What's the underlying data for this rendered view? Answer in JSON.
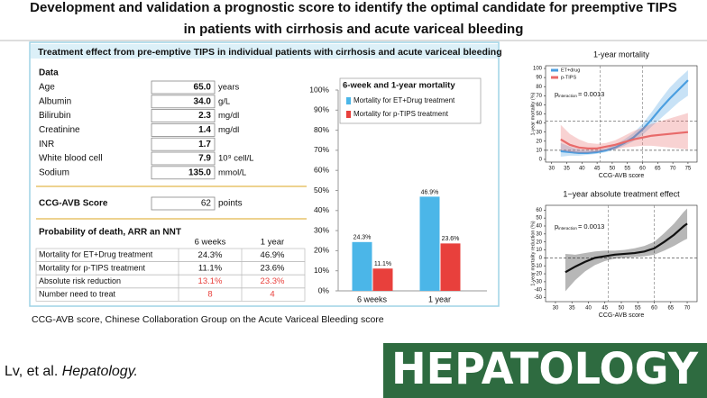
{
  "title": [
    "Development and validation a prognostic score to identify the optimal candidate for preemptive TIPS",
    "in patients with cirrhosis and acute variceal bleeding"
  ],
  "panel": {
    "header": "Treatment effect from pre-emptive TIPS in individual patients with  cirrhosis and acute variceal bleeding",
    "data_heading": "Data",
    "rows": [
      {
        "label": "Age",
        "value": "65.0",
        "unit": "years"
      },
      {
        "label": "Albumin",
        "value": "34.0",
        "unit": "g/L"
      },
      {
        "label": "Bilirubin",
        "value": "2.3",
        "unit": "mg/dl"
      },
      {
        "label": "Creatinine",
        "value": "1.4",
        "unit": "mg/dl"
      },
      {
        "label": "INR",
        "value": "1.7"
      },
      {
        "label": "White blood cell",
        "value": "7.9",
        "unit": "10⁹ cell/L"
      },
      {
        "label": "Sodium",
        "value": "135.0",
        "unit": "mmol/L"
      }
    ],
    "score": {
      "label": "CCG-AVB Score",
      "value": "62",
      "unit": "points"
    },
    "prob_heading": "Probability of death, ARR an NNT",
    "columns": [
      "6 weeks",
      "1 year"
    ],
    "table": [
      {
        "label": "Mortality for ET+Drug treatment",
        "cells": [
          "24.3%",
          "46.9%"
        ]
      },
      {
        "label": "Mortality for p-TIPS  treatment",
        "cells": [
          "11.1%",
          "23.6%"
        ]
      },
      {
        "label": "Absolute risk reduction",
        "cells": [
          "13.1%",
          "23.3%"
        ],
        "color": "#e8403c"
      },
      {
        "label": "Number need to treat",
        "cells": [
          "8",
          "4"
        ],
        "color": "#e8403c"
      }
    ]
  },
  "chart_data": [
    {
      "type": "bar",
      "title": "6-week and 1-year mortality",
      "categories": [
        "6 weeks",
        "1 year"
      ],
      "series": [
        {
          "name": "Mortality for ET+Drug treatment",
          "color": "#4bb6e8",
          "values": [
            24.3,
            46.9
          ],
          "value_labels": [
            "24.3%",
            "46.9%"
          ]
        },
        {
          "name": "Mortality for p-TIPS  treatment",
          "color": "#e8403c",
          "values": [
            11.1,
            23.6
          ],
          "value_labels": [
            "11.1%",
            "23.6%"
          ]
        }
      ],
      "ylim": [
        0,
        100
      ],
      "yticks": [
        {
          "value": 0,
          "label": "0%"
        },
        {
          "value": 10,
          "label": "10%"
        },
        {
          "value": 20,
          "label": "20%"
        },
        {
          "value": 30,
          "label": "30%"
        },
        {
          "value": 40,
          "label": "40%"
        },
        {
          "value": 50,
          "label": "50%"
        },
        {
          "value": 60,
          "label": "60%"
        },
        {
          "value": 70,
          "label": "70%"
        },
        {
          "value": 80,
          "label": "80%"
        },
        {
          "value": 90,
          "label": "90%"
        },
        {
          "value": 100,
          "label": "100%"
        }
      ]
    },
    {
      "type": "line",
      "title": "1-year mortality",
      "x_label": "CCG-AVB score",
      "y_label": "1-year mortality (%)",
      "x": [
        33,
        36,
        39,
        42,
        45,
        48,
        51,
        54,
        57,
        60,
        63,
        66,
        69,
        72,
        75
      ],
      "series": [
        {
          "name": "ET+drug",
          "color": "#4a9ee0",
          "values": [
            9,
            8,
            7,
            7,
            8,
            10,
            13,
            18,
            24,
            33,
            44,
            56,
            67,
            77,
            87
          ],
          "lower": [
            3,
            4,
            4,
            5,
            6,
            8,
            11,
            15,
            20,
            27,
            36,
            45,
            54,
            63,
            70
          ],
          "upper": [
            18,
            14,
            11,
            10,
            10,
            12,
            16,
            22,
            29,
            39,
            52,
            66,
            79,
            89,
            98
          ]
        },
        {
          "name": "p-TIPS",
          "color": "#e86a6a",
          "values": [
            22,
            16,
            13,
            12,
            12,
            14,
            16,
            19,
            22,
            24,
            26,
            27,
            28,
            29,
            30
          ],
          "lower": [
            10,
            8,
            7,
            7,
            8,
            10,
            11,
            13,
            14,
            15,
            15,
            14,
            13,
            12,
            11
          ],
          "upper": [
            38,
            28,
            22,
            18,
            17,
            18,
            21,
            26,
            31,
            35,
            39,
            42,
            45,
            48,
            51
          ]
        }
      ],
      "xlim": [
        28,
        78
      ],
      "xticks": [
        30,
        35,
        40,
        45,
        50,
        55,
        60,
        65,
        70,
        75
      ],
      "ylim": [
        -3,
        103
      ],
      "yticks": [
        0,
        10,
        20,
        30,
        40,
        50,
        60,
        70,
        80,
        90,
        100
      ],
      "vlines": [
        46,
        60
      ],
      "hlines": [
        10,
        42
      ],
      "annotation": {
        "symbol": "p",
        "subscript": "interaction",
        "text": "= 0.0013"
      }
    },
    {
      "type": "line",
      "title": "1−year absolute treatment effect",
      "x_label": "CCG-AVB score",
      "y_label": "1-year mortality reduction (%)",
      "x": [
        33,
        36,
        39,
        42,
        45,
        48,
        51,
        54,
        57,
        60,
        63,
        66,
        69,
        70
      ],
      "series": [
        {
          "color": "#111111",
          "values": [
            -18,
            -11,
            -5,
            0,
            2,
            4,
            5,
            6,
            8,
            12,
            20,
            29,
            40,
            43
          ],
          "lower": [
            -42,
            -28,
            -17,
            -9,
            -4,
            -1,
            0,
            1,
            2,
            4,
            9,
            15,
            22,
            24
          ],
          "upper": [
            5,
            4,
            6,
            8,
            9,
            9,
            10,
            12,
            15,
            20,
            31,
            43,
            58,
            62
          ]
        }
      ],
      "xlim": [
        27,
        73
      ],
      "xticks": [
        30,
        35,
        40,
        45,
        50,
        55,
        60,
        65,
        70
      ],
      "ylim": [
        -55,
        66
      ],
      "yticks": [
        -50,
        -40,
        -30,
        -20,
        -10,
        0,
        10,
        20,
        30,
        40,
        50,
        60
      ],
      "vlines": [
        46,
        60
      ],
      "hlines": [
        0
      ],
      "annotation": {
        "symbol": "p",
        "subscript": "interaction",
        "text": "= 0.0013"
      }
    }
  ],
  "footnote": "CCG-AVB score, Chinese Collaboration Group on the Acute Variceal Bleeding score",
  "citation": {
    "authors": "Lv, et al.",
    "journal": "Hepatology."
  },
  "logo": "HEPATOLOGY"
}
